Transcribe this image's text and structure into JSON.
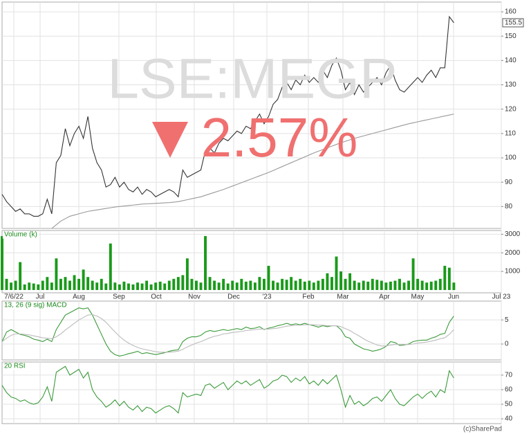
{
  "chart_data": [
    {
      "type": "line",
      "watermark": "LSE:MEGP",
      "change_label": "2.57%",
      "xlim": [
        0,
        110.5
      ],
      "ylim": [
        71,
        164
      ],
      "yticks": [
        80,
        90,
        100,
        110,
        120,
        130,
        140,
        150,
        160
      ],
      "grid": true,
      "series": [
        {
          "color": "#333333",
          "values": [
            85,
            82,
            80,
            78,
            79,
            77,
            77,
            76,
            76,
            77,
            83,
            77,
            98,
            101,
            112,
            105,
            110,
            113,
            108,
            117,
            104,
            98,
            95,
            88,
            89,
            92,
            88,
            90,
            87,
            86,
            88,
            85,
            87,
            86,
            84,
            85,
            86,
            87,
            86,
            84,
            95,
            92,
            93,
            94,
            95,
            103,
            104,
            102,
            106,
            108,
            107,
            109,
            111,
            110,
            113,
            112,
            115,
            118,
            114,
            117,
            122,
            124,
            129,
            131,
            128,
            132,
            130,
            134,
            131,
            133,
            131,
            136,
            133,
            138,
            141,
            136,
            128,
            131,
            126,
            130,
            127,
            129,
            131,
            133,
            130,
            135,
            138,
            132,
            128,
            127,
            129,
            131,
            133,
            131,
            134,
            136,
            133,
            137,
            137,
            158,
            155.5
          ]
        },
        {
          "color": "#999999",
          "values": [
            null,
            null,
            null,
            null,
            null,
            null,
            null,
            null,
            null,
            null,
            null,
            71,
            72.5,
            74,
            75,
            76,
            76.5,
            77,
            77.5,
            78,
            78.3,
            78.6,
            78.9,
            79.2,
            79.5,
            79.8,
            80,
            80.2,
            80.4,
            80.6,
            80.8,
            81,
            81.1,
            81.2,
            81.3,
            81.4,
            81.5,
            81.6,
            81.8,
            82,
            82.4,
            82.8,
            83.2,
            83.6,
            84,
            84.6,
            85.2,
            85.8,
            86.4,
            87,
            87.7,
            88.4,
            89.1,
            89.8,
            90.5,
            91.2,
            91.9,
            92.6,
            93.3,
            94,
            94.8,
            95.6,
            96.4,
            97.2,
            98,
            98.8,
            99.6,
            100.4,
            101.2,
            102,
            102.7,
            103.4,
            104.1,
            104.8,
            105.5,
            106.2,
            106.8,
            107.4,
            108,
            108.5,
            109,
            109.5,
            110,
            110.5,
            111,
            111.5,
            112,
            112.5,
            113,
            113.5,
            114,
            114.4,
            114.8,
            115.2,
            115.6,
            116,
            116.4,
            116.8,
            117.2,
            117.6,
            118
          ]
        }
      ]
    },
    {
      "type": "bar",
      "title": "Volume (k)",
      "color": "#1a9a1a",
      "xlim": [
        0,
        110.5
      ],
      "ylim": [
        -150,
        3200
      ],
      "yticks": [
        1000,
        2000,
        3000
      ],
      "grid": true,
      "xticks": [
        {
          "value": 2.6,
          "label": "7/6/22"
        },
        {
          "value": 8.42,
          "label": "Jul"
        },
        {
          "value": 16.99,
          "label": "Aug"
        },
        {
          "value": 25.86,
          "label": "Sep"
        },
        {
          "value": 34.13,
          "label": "Oct"
        },
        {
          "value": 42.55,
          "label": "Nov"
        },
        {
          "value": 51.27,
          "label": "Dec"
        },
        {
          "value": 58.62,
          "label": "'23"
        },
        {
          "value": 67.8,
          "label": "Feb"
        },
        {
          "value": 75.45,
          "label": "Mar"
        },
        {
          "value": 84.63,
          "label": "Apr"
        },
        {
          "value": 91.98,
          "label": "May"
        },
        {
          "value": 99.94,
          "label": "Jun"
        },
        {
          "value": 110.5,
          "label": "Jul 23"
        }
      ],
      "values": [
        2900,
        600,
        400,
        500,
        1500,
        300,
        400,
        350,
        300,
        500,
        700,
        400,
        1700,
        600,
        700,
        500,
        800,
        600,
        1100,
        700,
        500,
        400,
        600,
        350,
        2500,
        400,
        300,
        450,
        350,
        300,
        400,
        350,
        500,
        300,
        400,
        450,
        350,
        500,
        600,
        700,
        800,
        1700,
        600,
        500,
        400,
        2900,
        700,
        500,
        400,
        600,
        350,
        500,
        400,
        600,
        450,
        500,
        400,
        700,
        600,
        1300,
        500,
        400,
        600,
        550,
        700,
        500,
        600,
        450,
        500,
        400,
        500,
        600,
        900,
        700,
        1800,
        1000,
        600,
        900,
        500,
        400,
        500,
        450,
        600,
        550,
        500,
        400,
        450,
        500,
        600,
        400,
        500,
        1700,
        600,
        500,
        400,
        450,
        500,
        600,
        1300,
        1200,
        400
      ]
    },
    {
      "type": "line",
      "title": "13, 26 (9 sig) MACD",
      "xlim": [
        0,
        110.5
      ],
      "ylim": [
        -3.3,
        8.9
      ],
      "yticks": [
        0,
        5
      ],
      "grid": true,
      "series": [
        {
          "color": "#3a9a3a",
          "values": [
            0.5,
            2.5,
            3,
            2.5,
            2,
            1.8,
            1.5,
            1,
            0.8,
            0.5,
            1,
            0.5,
            3,
            4.5,
            6,
            6.5,
            7,
            7.5,
            7.3,
            7.5,
            6,
            4,
            2,
            0,
            -1.5,
            -2.2,
            -2.5,
            -2.3,
            -2,
            -1.8,
            -1.5,
            -2,
            -1.8,
            -2,
            -2.2,
            -2,
            -1.8,
            -1.5,
            -1.3,
            -1.2,
            0.5,
            1.2,
            1.5,
            1.5,
            1.8,
            2.5,
            2.8,
            2.6,
            2.8,
            3,
            2.8,
            3,
            3.2,
            3,
            3.5,
            3.2,
            3.3,
            3.6,
            3,
            3.3,
            3.5,
            3.8,
            4,
            4.3,
            4,
            4.2,
            4,
            4.3,
            4,
            3.8,
            3.5,
            3.8,
            3.6,
            3.8,
            3.8,
            3,
            1.5,
            1.2,
            0,
            -0.5,
            -1,
            -1.2,
            -1.5,
            -1.3,
            -1,
            -0.5,
            0.5,
            0.3,
            -0.3,
            -0.2,
            0,
            0.5,
            0.7,
            0.8,
            0.8,
            1.2,
            1.5,
            2,
            2.2,
            4.5,
            5.8
          ]
        },
        {
          "color": "#bbbbbb",
          "values": [
            0.5,
            1.2,
            1.8,
            2.1,
            2.1,
            2,
            1.9,
            1.7,
            1.5,
            1.3,
            1.2,
            1.1,
            1.5,
            2.1,
            2.9,
            3.6,
            4.3,
            5,
            5.5,
            6,
            6.1,
            5.8,
            5.3,
            4.5,
            3.5,
            2.5,
            1.6,
            0.8,
            0.2,
            -0.3,
            -0.7,
            -1,
            -1.2,
            -1.4,
            -1.6,
            -1.7,
            -1.7,
            -1.7,
            -1.6,
            -1.5,
            -1.1,
            -0.6,
            -0.2,
            0.2,
            0.5,
            0.9,
            1.3,
            1.6,
            1.8,
            2.1,
            2.2,
            2.4,
            2.5,
            2.6,
            2.8,
            2.9,
            3,
            3.1,
            3.1,
            3.1,
            3.2,
            3.3,
            3.5,
            3.7,
            3.8,
            3.9,
            3.9,
            4,
            4,
            4,
            3.9,
            3.9,
            3.8,
            3.8,
            3.8,
            3.6,
            3.2,
            2.8,
            2.2,
            1.7,
            1.1,
            0.6,
            0.2,
            -0.2,
            -0.4,
            -0.4,
            -0.2,
            -0.1,
            -0.1,
            -0.1,
            -0.1,
            0,
            0.2,
            0.3,
            0.4,
            0.6,
            0.8,
            1.1,
            1.3,
            2,
            3
          ]
        }
      ]
    },
    {
      "type": "line",
      "title": "20 RSI",
      "xlim": [
        0,
        110.5
      ],
      "ylim": [
        36.7,
        79
      ],
      "yticks": [
        40,
        50,
        60,
        70
      ],
      "grid": true,
      "series": [
        {
          "color": "#3a9a3a",
          "values": [
            63,
            58,
            55,
            54,
            52,
            53,
            51,
            50,
            51,
            55,
            62,
            52,
            72,
            74,
            76,
            70,
            72,
            74,
            68,
            72,
            60,
            55,
            52,
            48,
            50,
            53,
            49,
            52,
            48,
            46,
            49,
            45,
            48,
            47,
            44,
            46,
            48,
            49,
            47,
            44,
            58,
            55,
            56,
            57,
            56,
            63,
            64,
            61,
            63,
            65,
            60,
            63,
            66,
            64,
            66,
            63,
            65,
            67,
            61,
            63,
            66,
            67,
            70,
            69,
            65,
            68,
            66,
            69,
            64,
            66,
            63,
            67,
            64,
            67,
            70,
            60,
            48,
            56,
            50,
            52,
            49,
            51,
            54,
            55,
            52,
            56,
            60,
            54,
            50,
            49,
            52,
            55,
            57,
            54,
            57,
            59,
            55,
            60,
            58,
            73,
            68
          ]
        }
      ]
    }
  ],
  "credit": "(c)SharePad"
}
